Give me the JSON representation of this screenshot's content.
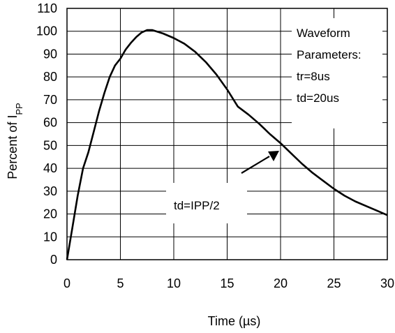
{
  "chart_data": {
    "type": "line",
    "title": "",
    "xlabel": "Time (µs)",
    "ylabel": "Percent of I",
    "ylabel_subscript": "PP",
    "xlim": [
      0,
      30
    ],
    "ylim": [
      0,
      110
    ],
    "xticks": [
      0,
      5,
      10,
      15,
      20,
      25,
      30
    ],
    "yticks": [
      0,
      10,
      20,
      30,
      40,
      50,
      60,
      70,
      80,
      90,
      100,
      110
    ],
    "grid": true,
    "series": [
      {
        "color": "#000000",
        "x": [
          0,
          0.5,
          1,
          1.5,
          2,
          2.5,
          3,
          3.5,
          4,
          4.5,
          5,
          5.5,
          6,
          6.5,
          7,
          7.5,
          8,
          9,
          10,
          11,
          12,
          13,
          14,
          15,
          16,
          17,
          18,
          19,
          20,
          21,
          22,
          23,
          24,
          25,
          26,
          27,
          28,
          29,
          30
        ],
        "values": [
          0,
          14,
          28,
          40,
          47,
          56,
          65,
          73,
          80,
          85,
          88,
          92,
          95,
          97.5,
          99.5,
          100.5,
          100.5,
          99,
          97,
          94.5,
          91,
          86.5,
          81,
          74.5,
          67,
          63.5,
          59.5,
          55,
          51,
          46.5,
          42,
          38,
          34.5,
          31,
          28,
          25.5,
          23.5,
          21.5,
          19.5
        ]
      }
    ],
    "annotations": {
      "params": [
        "Waveform",
        "Parameters:",
        "tr=8us",
        "td=20us"
      ],
      "td_label": "td=IPP/2"
    }
  }
}
